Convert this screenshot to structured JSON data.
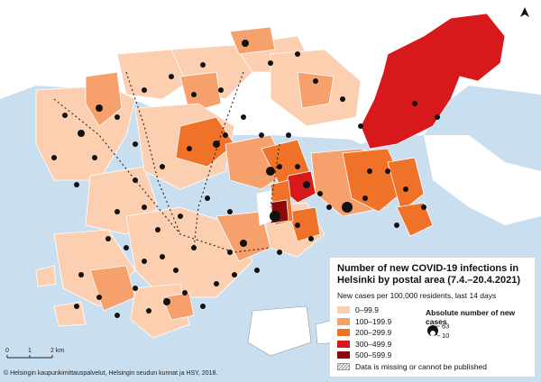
{
  "legend": {
    "title": "Number of new COVID-19 infections in Helsinki by postal area (7.4.–20.4.2021)",
    "subtitle": "New cases per 100,000 residents, last 14 days",
    "classes": [
      {
        "label": "0–99.9",
        "color": "#fbcfb0"
      },
      {
        "label": "100–199.9",
        "color": "#f6a06c"
      },
      {
        "label": "200–299.9",
        "color": "#f07128"
      },
      {
        "label": "300–499.9",
        "color": "#d7191c"
      },
      {
        "label": "500–599.9",
        "color": "#8b0a0a"
      }
    ],
    "missing_label": "Data is missing or cannot be published",
    "absolute_title": "Absolute number of new cases",
    "absolute_max": "63",
    "absolute_min": "10"
  },
  "scale": {
    "labels": [
      "0",
      "1",
      "2 km"
    ]
  },
  "credit": "© Helsingin kaupunkimittauspalvelut, Helsingin seudun kunnat ja HSY, 2018.",
  "colors": {
    "sea": "#c9dff0",
    "land_outside": "#ffffff",
    "dot": "#111111"
  },
  "north_icon": "north-arrow-icon"
}
